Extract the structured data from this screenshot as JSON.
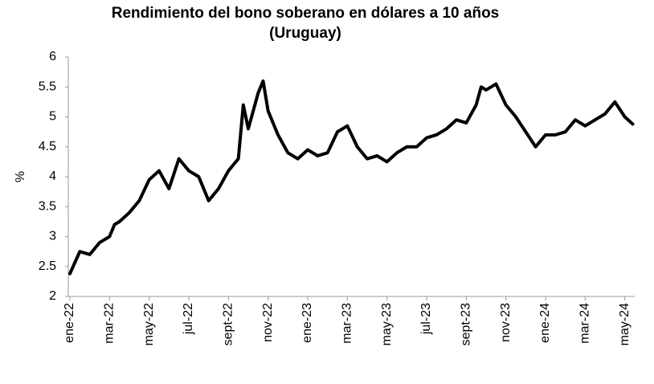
{
  "chart_data": {
    "type": "line",
    "title": "Rendimiento del bono soberano en dólares a 10 años",
    "subtitle": "(Uruguay)",
    "y_label": "%",
    "x": [
      0,
      0.5,
      1,
      1.5,
      2,
      2.25,
      2.5,
      3,
      3.5,
      4,
      4.5,
      5,
      5.5,
      6,
      6.5,
      7,
      7.5,
      8,
      8.5,
      8.75,
      9,
      9.5,
      9.75,
      10,
      10.5,
      11,
      11.5,
      12,
      12.5,
      13,
      13.5,
      14,
      14.5,
      15,
      15.5,
      16,
      16.5,
      17,
      17.5,
      18,
      18.5,
      19,
      19.5,
      20,
      20.5,
      20.75,
      21,
      21.5,
      22,
      22.5,
      23,
      23.5,
      24,
      24.5,
      25,
      25.5,
      26,
      26.5,
      27,
      27.5,
      28,
      28.4
    ],
    "series": [
      {
        "name": "Rendimiento",
        "color": "#000000",
        "values": [
          2.38,
          2.75,
          2.7,
          2.9,
          3.0,
          3.2,
          3.25,
          3.4,
          3.6,
          3.95,
          4.1,
          3.8,
          4.3,
          4.1,
          4.0,
          3.6,
          3.8,
          4.1,
          4.3,
          5.2,
          4.8,
          5.4,
          5.6,
          5.1,
          4.7,
          4.4,
          4.3,
          4.45,
          4.35,
          4.4,
          4.75,
          4.85,
          4.5,
          4.3,
          4.35,
          4.25,
          4.4,
          4.5,
          4.5,
          4.65,
          4.7,
          4.8,
          4.95,
          4.9,
          5.2,
          5.5,
          5.45,
          5.55,
          5.2,
          5.0,
          4.75,
          4.5,
          4.7,
          4.7,
          4.75,
          4.95,
          4.85,
          4.95,
          5.05,
          5.25,
          5.0,
          4.88
        ]
      }
    ],
    "xlim": [
      0,
      28.5
    ],
    "xticks": [
      {
        "value": 0,
        "label": "ene-22"
      },
      {
        "value": 2,
        "label": "mar-22"
      },
      {
        "value": 4,
        "label": "may-22"
      },
      {
        "value": 6,
        "label": "jul-22"
      },
      {
        "value": 8,
        "label": "sept-22"
      },
      {
        "value": 10,
        "label": "nov-22"
      },
      {
        "value": 12,
        "label": "ene-23"
      },
      {
        "value": 14,
        "label": "mar-23"
      },
      {
        "value": 16,
        "label": "may-23"
      },
      {
        "value": 18,
        "label": "jul-23"
      },
      {
        "value": 20,
        "label": "sept-23"
      },
      {
        "value": 22,
        "label": "nov-23"
      },
      {
        "value": 24,
        "label": "ene-24"
      },
      {
        "value": 26,
        "label": "mar-24"
      },
      {
        "value": 28,
        "label": "may-24"
      }
    ],
    "ylim": [
      2,
      6
    ],
    "yticks": [
      2,
      2.5,
      3,
      3.5,
      4,
      4.5,
      5,
      5.5,
      6
    ],
    "grid": false
  }
}
